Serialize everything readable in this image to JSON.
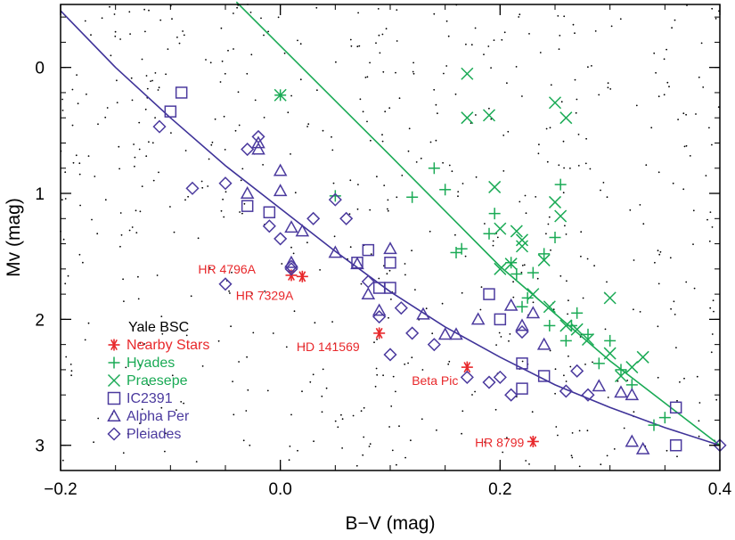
{
  "chart_data": {
    "type": "scatter",
    "xlabel": "B−V (mag)",
    "ylabel": "Mv (mag)",
    "xlim": [
      -0.2,
      0.4
    ],
    "ylim": [
      3.2,
      -0.5
    ],
    "x_ticks": [
      -0.2,
      0.0,
      0.2,
      0.4
    ],
    "x_tick_labels": [
      "−0.2",
      "0.0",
      "0.2",
      "0.4"
    ],
    "y_ticks": [
      0,
      1,
      2,
      3
    ],
    "y_tick_labels": [
      "0",
      "1",
      "2",
      "3"
    ],
    "grid": false,
    "legend_position": "bottom-left",
    "colors": {
      "nearby": "#e8282b",
      "hyades": "#1aaa55",
      "praesepe": "#1aaa55",
      "ic2391": "#4b3a9e",
      "alphaper": "#4b3a9e",
      "pleiades": "#4b3a9e",
      "curve_blue": "#3f3399",
      "curve_green": "#1aaa55",
      "bsc": "#000000"
    },
    "legend": [
      {
        "label": "Yale BSC",
        "marker": "dot",
        "color": "#000000"
      },
      {
        "label": "Nearby Stars",
        "marker": "asterisk",
        "color": "#e8282b"
      },
      {
        "label": "Hyades",
        "marker": "plus",
        "color": "#1aaa55"
      },
      {
        "label": "Praesepe",
        "marker": "cross",
        "color": "#1aaa55"
      },
      {
        "label": "IC2391",
        "marker": "square",
        "color": "#4b3a9e"
      },
      {
        "label": "Alpha Per",
        "marker": "triangle",
        "color": "#4b3a9e"
      },
      {
        "label": "Pleiades",
        "marker": "diamond",
        "color": "#4b3a9e"
      }
    ],
    "annotations": [
      {
        "text": "HR 4796A",
        "x": 0.01,
        "y": 1.65
      },
      {
        "text": "HR 7329A",
        "x": 0.02,
        "y": 1.66
      },
      {
        "text": "HD 141569",
        "x": 0.09,
        "y": 2.11
      },
      {
        "text": "Beta Pic",
        "x": 0.17,
        "y": 2.38
      },
      {
        "text": "HR 8799",
        "x": 0.23,
        "y": 2.97
      }
    ],
    "series": [
      {
        "name": "Nearby Stars",
        "marker": "asterisk",
        "x": [
          0.01,
          0.02,
          0.09,
          0.17,
          0.23
        ],
        "y": [
          1.65,
          1.66,
          2.11,
          2.38,
          2.97
        ]
      },
      {
        "name": "Hyades",
        "marker": "plus",
        "x": [
          0.0,
          0.05,
          0.12,
          0.14,
          0.15,
          0.16,
          0.165,
          0.19,
          0.195,
          0.21,
          0.215,
          0.22,
          0.225,
          0.23,
          0.24,
          0.245,
          0.25,
          0.255,
          0.26,
          0.265,
          0.27,
          0.28,
          0.29,
          0.3,
          0.31,
          0.32,
          0.34,
          0.35
        ],
        "y": [
          0.22,
          1.02,
          1.03,
          0.8,
          0.97,
          1.47,
          1.44,
          1.32,
          1.16,
          1.55,
          1.64,
          1.9,
          1.83,
          1.63,
          1.48,
          2.05,
          1.35,
          0.93,
          2.17,
          2.05,
          1.95,
          2.12,
          2.35,
          2.17,
          2.4,
          2.52,
          2.84,
          2.78
        ],
        "note": "hyades values approximate"
      },
      {
        "name": "Praesepe",
        "marker": "cross",
        "x": [
          0.0,
          0.17,
          0.17,
          0.19,
          0.195,
          0.2,
          0.2,
          0.21,
          0.215,
          0.22,
          0.22,
          0.23,
          0.24,
          0.245,
          0.25,
          0.25,
          0.255,
          0.26,
          0.26,
          0.27,
          0.28,
          0.3,
          0.3,
          0.31,
          0.32,
          0.33
        ],
        "y": [
          0.22,
          0.05,
          0.4,
          0.38,
          0.95,
          1.28,
          1.6,
          1.56,
          1.3,
          1.37,
          1.42,
          1.8,
          1.53,
          1.9,
          0.28,
          1.07,
          1.18,
          0.4,
          2.05,
          2.08,
          2.16,
          1.83,
          2.27,
          2.45,
          2.38,
          2.3
        ],
        "note": "praesepe values approximate"
      },
      {
        "name": "IC2391",
        "marker": "square",
        "x": [
          -0.09,
          -0.1,
          -0.03,
          -0.01,
          0.07,
          0.08,
          0.09,
          0.1,
          0.1,
          0.19,
          0.2,
          0.22,
          0.22,
          0.24,
          0.36,
          0.36
        ],
        "y": [
          0.2,
          0.35,
          1.1,
          1.15,
          1.55,
          1.45,
          1.75,
          1.55,
          1.75,
          1.8,
          2.0,
          2.35,
          2.55,
          2.45,
          2.7,
          3.0
        ]
      },
      {
        "name": "Alpha Per",
        "marker": "triangle",
        "x": [
          -0.02,
          -0.02,
          -0.03,
          0.0,
          0.0,
          0.01,
          0.01,
          0.02,
          0.05,
          0.07,
          0.08,
          0.09,
          0.1,
          0.13,
          0.15,
          0.16,
          0.18,
          0.21,
          0.22,
          0.23,
          0.24,
          0.29,
          0.31,
          0.32,
          0.32,
          0.33
        ],
        "y": [
          0.6,
          0.65,
          1.0,
          0.82,
          0.98,
          1.27,
          1.55,
          1.3,
          1.47,
          1.56,
          1.8,
          1.93,
          1.44,
          1.96,
          2.12,
          2.12,
          2.0,
          1.89,
          2.05,
          1.95,
          2.2,
          2.53,
          2.58,
          2.6,
          2.97,
          3.03
        ]
      },
      {
        "name": "Pleiades",
        "marker": "diamond",
        "x": [
          -0.11,
          -0.08,
          -0.05,
          -0.05,
          -0.03,
          -0.02,
          -0.01,
          0.0,
          0.01,
          0.01,
          0.03,
          0.05,
          0.06,
          0.08,
          0.09,
          0.1,
          0.11,
          0.12,
          0.14,
          0.17,
          0.19,
          0.2,
          0.21,
          0.22,
          0.26,
          0.27,
          0.28,
          0.4
        ],
        "y": [
          0.47,
          0.96,
          0.92,
          1.72,
          0.65,
          0.55,
          1.26,
          1.36,
          1.58,
          1.6,
          1.2,
          1.05,
          1.2,
          1.7,
          1.98,
          2.28,
          1.91,
          2.11,
          2.2,
          2.46,
          2.5,
          2.46,
          2.6,
          2.1,
          2.57,
          2.41,
          2.6,
          3.0
        ]
      }
    ],
    "curves": [
      {
        "name": "ZAMS",
        "color": "#3f3399",
        "x": [
          -0.2,
          -0.15,
          -0.1,
          -0.05,
          0.0,
          0.05,
          0.1,
          0.15,
          0.2,
          0.25,
          0.3,
          0.35,
          0.4
        ],
        "y": [
          -0.45,
          0.0,
          0.4,
          0.78,
          1.12,
          1.46,
          1.78,
          2.06,
          2.3,
          2.52,
          2.7,
          2.86,
          3.0
        ]
      },
      {
        "name": "Hyades sequence",
        "color": "#1aaa55",
        "x": [
          -0.04,
          0.0,
          0.1,
          0.2,
          0.3,
          0.4
        ],
        "y": [
          -0.52,
          -0.17,
          0.7,
          1.58,
          2.33,
          3.0
        ]
      }
    ]
  }
}
